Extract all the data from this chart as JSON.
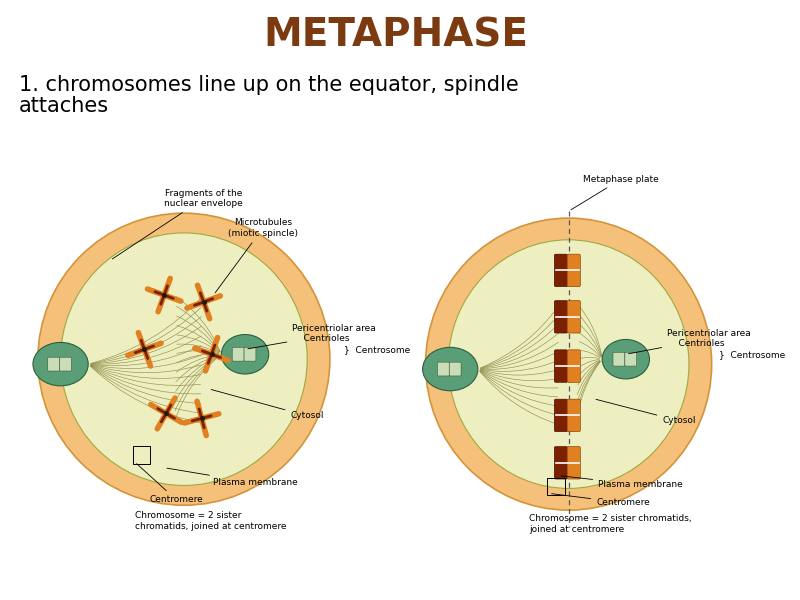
{
  "title": "METAPHASE",
  "title_color": "#7B3A10",
  "title_fontsize": 28,
  "subtitle_line1": "1. chromosomes line up on the equator, spindle",
  "subtitle_line2": "attaches",
  "subtitle_fontsize": 15,
  "subtitle_color": "#000000",
  "bg_color": "#ffffff",
  "fig_width": 8.0,
  "fig_height": 6.0,
  "outer_color": "#F5C07A",
  "outer_edge": "#D4943A",
  "inner_color": "#EEEFC0",
  "inner_edge": "#A0A840",
  "centrosome_color": "#5A9E78",
  "centrosome_edge": "#2A6040",
  "chromosome_dark": "#7B2000",
  "chromosome_orange": "#E08020",
  "spindle_color": "#909050",
  "label_fontsize": 6.5,
  "label_color": "#000000",
  "annotation_lw": 0.6
}
